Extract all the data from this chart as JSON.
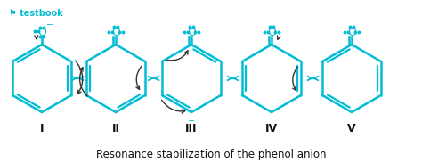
{
  "title": "Resonance stabilization of the phenol anion",
  "background_color": "#ffffff",
  "molecule_color": "#00bcd4",
  "arrow_color": "#333333",
  "label_color": "#111111",
  "watermark_color": "#00bcd4",
  "labels": [
    "I",
    "II",
    "III",
    "IV",
    "V"
  ],
  "fig_width": 4.74,
  "fig_height": 1.83,
  "dpi": 100
}
